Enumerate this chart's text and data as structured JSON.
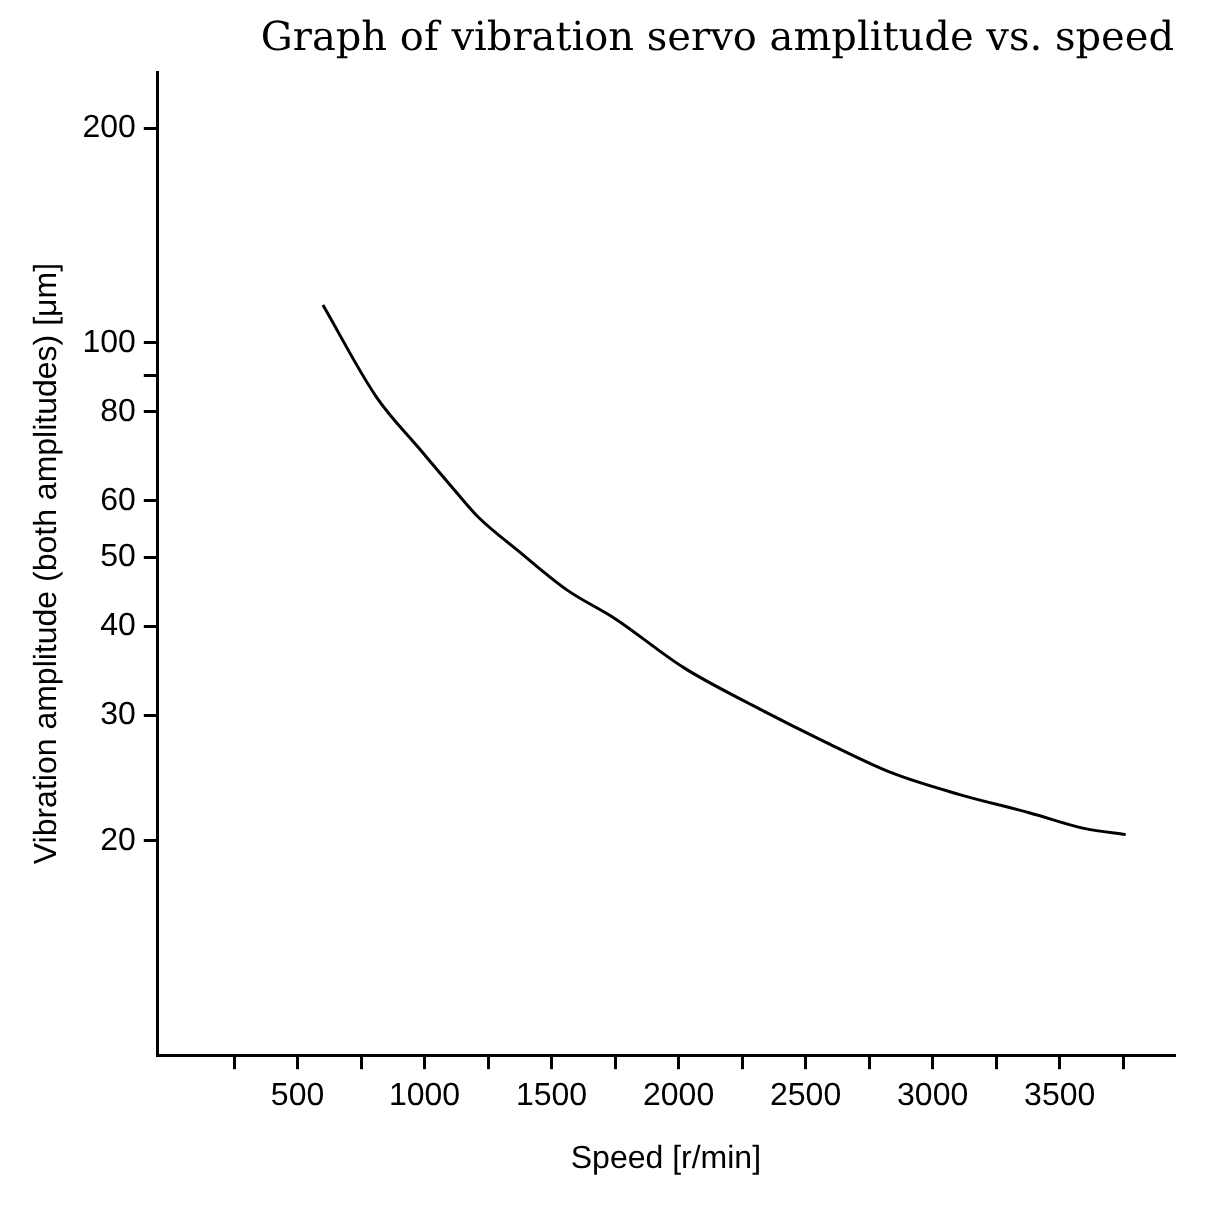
{
  "chart_data": {
    "type": "line",
    "title": "Graph of vibration servo amplitude vs. speed",
    "xlabel": "Speed [r/min]",
    "ylabel": "Vibration amplitude (both amplitudes) [μm]",
    "log": "y",
    "grid": false,
    "legend": false,
    "marker": "none",
    "line_style": "solid",
    "xlim": [
      -50,
      3950
    ],
    "xticks": [
      {
        "value": 250,
        "label": null
      },
      500,
      {
        "value": 750,
        "label": null
      },
      1000,
      {
        "value": 1250,
        "label": null
      },
      1500,
      {
        "value": 1750,
        "label": null
      },
      2000,
      {
        "value": 2250,
        "label": null
      },
      2500,
      {
        "value": 2750,
        "label": null
      },
      3000,
      {
        "value": 3250,
        "label": null
      },
      3500,
      {
        "value": 3750,
        "label": null
      }
    ],
    "ylim": [
      10,
      240
    ],
    "yticks": [
      20,
      30,
      40,
      50,
      60,
      80,
      {
        "value": 90,
        "label": null
      },
      100,
      200
    ],
    "series": [
      {
        "color": "#000000",
        "x": [
          600,
          810,
          980,
          1120,
          1210,
          1370,
          1560,
          1750,
          2020,
          2290,
          2570,
          2840,
          3110,
          3380,
          3600,
          3760
        ],
        "values": [
          113,
          84,
          71,
          62,
          57,
          51,
          45,
          41,
          35,
          31,
          27.6,
          24.9,
          23.2,
          21.9,
          20.8,
          20.4
        ]
      }
    ]
  }
}
